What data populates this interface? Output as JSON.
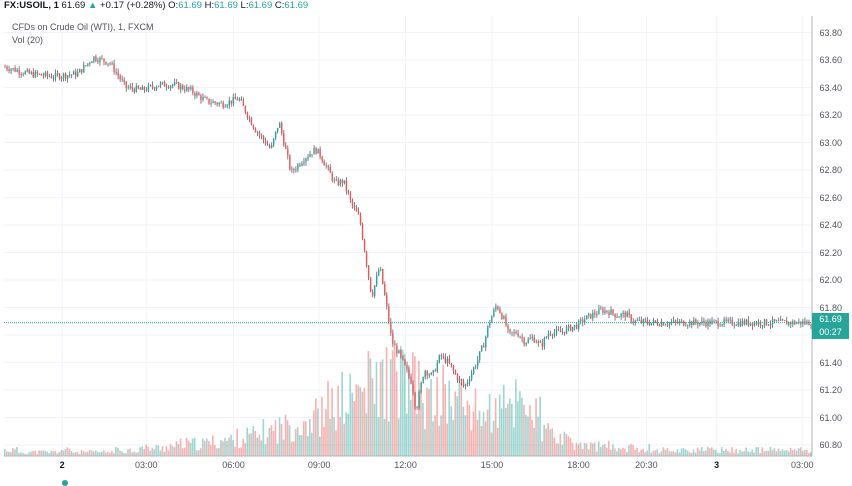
{
  "header": {
    "symbol": "FX:USOIL, 1",
    "last": "61.69",
    "arrow": "▲",
    "change": "+0.17 (+0.28%)",
    "o_label": "O:",
    "o_value": "61.69",
    "h_label": "H:",
    "h_value": "61.69",
    "l_label": "L:",
    "l_value": "61.69",
    "c_label": "C:",
    "c_value": "61.69"
  },
  "subtitle": "CFDs on Crude Oil (WTI), 1, FXCM",
  "volume_label": "Vol (20)",
  "price_tag": {
    "price": "61.69",
    "countdown": "00:27"
  },
  "colors": {
    "up": "#26a69a",
    "down": "#ef5350",
    "grid": "#f0f3fa",
    "axis": "#b2b5be",
    "last_line": "#26a69a"
  },
  "chart_data": {
    "type": "candlestick",
    "title": "CFDs on Crude Oil (WTI), 1, FXCM",
    "x_ticks": [
      "2",
      "03:00",
      "06:00",
      "09:00",
      "12:00",
      "15:00",
      "18:00",
      "20:30",
      "3",
      "03:00"
    ],
    "y_ticks": [
      "63.80",
      "63.60",
      "63.40",
      "63.20",
      "63.00",
      "62.80",
      "62.60",
      "62.40",
      "62.20",
      "62.00",
      "61.80",
      "61.60",
      "61.40",
      "61.20",
      "61.00",
      "60.80"
    ],
    "ylim": [
      60.72,
      63.92
    ],
    "last_price": 61.69,
    "grid": true,
    "series": [
      {
        "name": "price",
        "x": [
          0,
          0.03,
          0.06,
          0.09,
          0.11,
          0.13,
          0.15,
          0.17,
          0.19,
          0.21,
          0.23,
          0.25,
          0.27,
          0.29,
          0.31,
          0.33,
          0.34,
          0.355,
          0.37,
          0.385,
          0.39,
          0.41,
          0.42,
          0.43,
          0.44,
          0.455,
          0.465,
          0.475,
          0.48,
          0.49,
          0.505,
          0.51,
          0.52,
          0.53,
          0.54,
          0.55,
          0.56,
          0.57,
          0.585,
          0.595,
          0.6,
          0.61,
          0.62,
          0.625,
          0.635,
          0.645,
          0.655,
          0.665,
          0.675,
          0.69,
          0.7,
          0.71,
          0.72,
          0.73,
          0.74,
          0.75,
          0.76,
          0.77,
          0.78,
          0.8,
          0.82,
          0.84,
          0.86,
          0.88,
          0.9,
          0.91,
          0.92,
          0.935,
          0.95,
          0.965,
          0.98,
          0.99,
          1.0
        ],
        "y": [
          63.55,
          63.5,
          63.48,
          63.5,
          63.62,
          63.58,
          63.4,
          63.38,
          63.42,
          63.42,
          63.38,
          63.3,
          63.28,
          63.32,
          63.1,
          62.95,
          63.15,
          62.78,
          62.88,
          62.95,
          62.92,
          62.7,
          62.72,
          62.55,
          62.45,
          61.88,
          62.1,
          61.75,
          61.55,
          61.45,
          61.25,
          61.05,
          61.35,
          61.3,
          61.45,
          61.4,
          61.3,
          61.22,
          61.4,
          61.55,
          61.68,
          61.82,
          61.7,
          61.6,
          61.62,
          61.55,
          61.58,
          61.52,
          61.62,
          61.62,
          61.65,
          61.67,
          61.72,
          61.75,
          61.78,
          61.77,
          61.74,
          61.75,
          61.7,
          61.69,
          61.69,
          61.69,
          61.69,
          61.69,
          61.69,
          61.69,
          61.69,
          61.69,
          61.69,
          61.69,
          61.69,
          61.69,
          61.69
        ]
      }
    ],
    "volume": [
      3,
      2,
      2,
      2,
      3,
      2,
      2,
      2,
      3,
      3,
      4,
      4,
      5,
      6,
      6,
      7,
      8,
      9,
      10,
      12,
      14,
      16,
      18,
      20,
      25,
      28,
      32,
      35,
      38,
      40,
      34,
      26,
      30,
      28,
      25,
      22,
      22,
      24,
      30,
      20,
      12,
      8,
      6,
      5,
      5,
      4,
      4,
      4,
      3,
      3,
      3,
      3,
      3,
      3,
      3,
      3,
      3,
      3,
      3,
      3
    ]
  }
}
